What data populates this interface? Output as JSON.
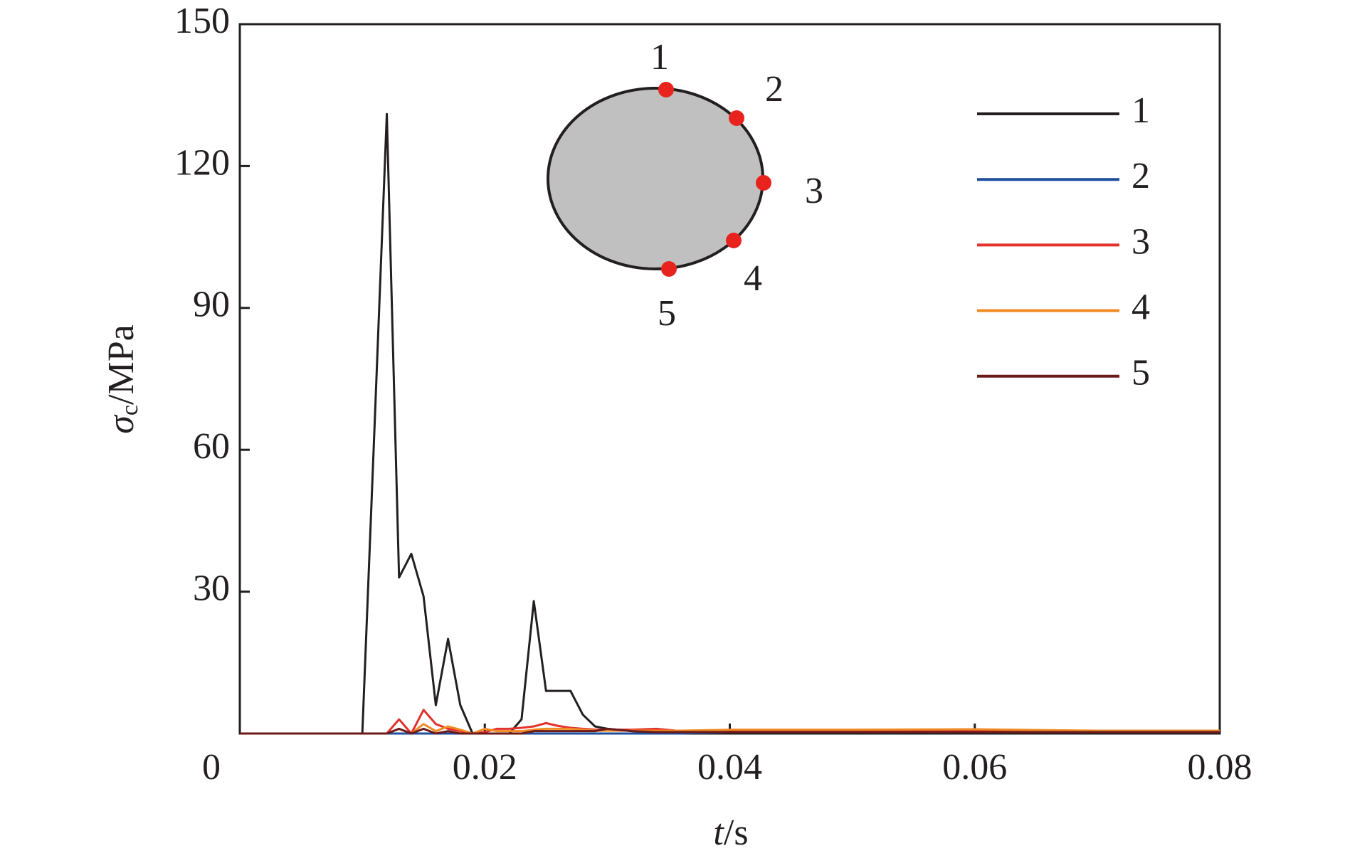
{
  "chart_data": {
    "type": "line",
    "xlabel": [
      "t",
      "/s"
    ],
    "ylabel": [
      "σ",
      "c",
      "/MPa"
    ],
    "x": [
      0,
      0.01,
      0.011,
      0.012,
      0.013,
      0.014,
      0.015,
      0.016,
      0.017,
      0.018,
      0.019,
      0.02,
      0.021,
      0.022,
      0.023,
      0.024,
      0.025,
      0.026,
      0.027,
      0.028,
      0.029,
      0.03,
      0.032,
      0.034,
      0.036,
      0.04,
      0.05,
      0.06,
      0.07,
      0.08
    ],
    "series": [
      {
        "name": "1",
        "color": "#231f20",
        "values": [
          0,
          0,
          65,
          131,
          33,
          38,
          29,
          6,
          20,
          6,
          0,
          0,
          0,
          0,
          3,
          28,
          9,
          9,
          9,
          4,
          1.5,
          1,
          0.5,
          0.5,
          0.5,
          0.3,
          0.3,
          0.3,
          0.3,
          0.3
        ]
      },
      {
        "name": "2",
        "color": "#1f4e9c",
        "values": [
          0,
          0,
          0,
          0,
          0,
          0,
          0,
          0,
          0,
          0,
          0,
          0,
          0,
          0,
          0,
          0,
          0,
          0,
          0,
          0,
          0,
          0,
          0,
          0,
          0,
          0.3,
          0.3,
          0.3,
          0.3,
          0.3
        ]
      },
      {
        "name": "3",
        "color": "#e3312d",
        "values": [
          0,
          0,
          0,
          0,
          3,
          0,
          5,
          2,
          1,
          0.5,
          0,
          0.3,
          1,
          1,
          1.2,
          1.5,
          2.2,
          1.6,
          1.2,
          1,
          0.8,
          0.8,
          0.8,
          1,
          0.5,
          0.5,
          0.5,
          0.5,
          0.5,
          0.5
        ]
      },
      {
        "name": "4",
        "color": "#f08a24",
        "values": [
          0,
          0,
          0,
          0,
          1,
          0,
          2,
          0.5,
          1.5,
          0.8,
          0,
          1,
          0.5,
          0.5,
          0.5,
          0.8,
          1,
          1,
          1,
          0.8,
          0.6,
          0.6,
          0.6,
          0.6,
          0.6,
          0.8,
          0.8,
          0.9,
          0.6,
          0.6
        ]
      },
      {
        "name": "5",
        "color": "#6b1a1a",
        "values": [
          0,
          0,
          0,
          0,
          1,
          0,
          1,
          0,
          0.5,
          0,
          0,
          0,
          0,
          0,
          0,
          0.5,
          0.5,
          0.5,
          0.5,
          0.5,
          0.5,
          1,
          0.5,
          0.3,
          0.3,
          0.3,
          0.3,
          0.3,
          0.3,
          0.3
        ]
      }
    ],
    "xlim": [
      0,
      0.08
    ],
    "xticks": [
      0,
      0.02,
      0.04,
      0.06,
      0.08
    ],
    "ylim": [
      0,
      150
    ],
    "yticks": [
      30,
      60,
      90,
      120,
      150
    ],
    "grid": false,
    "legend": "upper right",
    "inset": {
      "points": [
        "1",
        "2",
        "3",
        "4",
        "5"
      ]
    }
  }
}
